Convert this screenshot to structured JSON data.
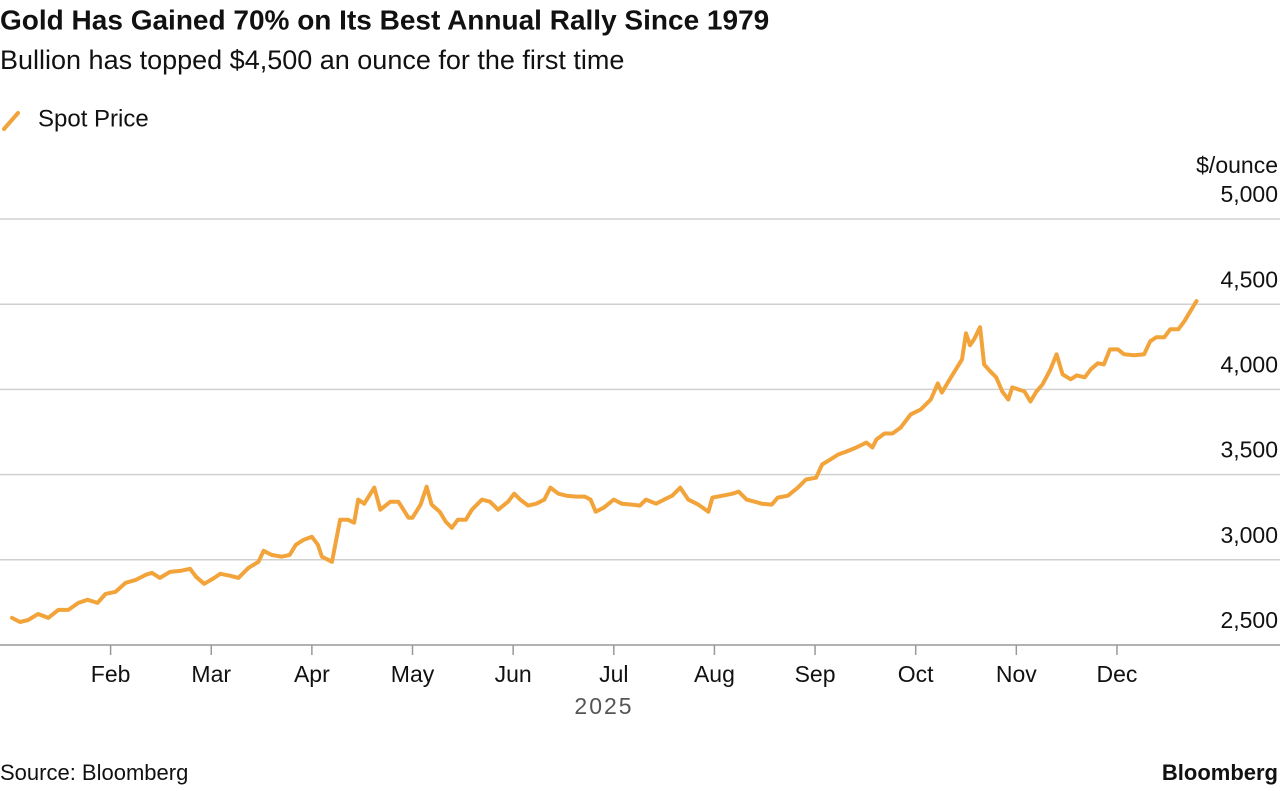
{
  "chart_data": {
    "type": "line",
    "title": "Gold Has Gained 70% on Its Best Annual Rally Since 1979",
    "subtitle": "Bullion has topped $4,500 an ounce for the first time",
    "y_unit": "$/ounce",
    "x_label": "2025",
    "source": "Source: Bloomberg",
    "brand": "Bloomberg",
    "grid": true,
    "legend": "top-left",
    "xlim": [
      -0.099,
      12.62
    ],
    "xticks": [
      {
        "value": 1,
        "label": "Feb"
      },
      {
        "value": 2,
        "label": "Mar"
      },
      {
        "value": 3,
        "label": "Apr"
      },
      {
        "value": 4,
        "label": "May"
      },
      {
        "value": 5,
        "label": "Jun"
      },
      {
        "value": 6,
        "label": "Jul"
      },
      {
        "value": 7,
        "label": "Aug"
      },
      {
        "value": 8,
        "label": "Sep"
      },
      {
        "value": 9,
        "label": "Oct"
      },
      {
        "value": 10,
        "label": "Nov"
      },
      {
        "value": 11,
        "label": "Dec"
      }
    ],
    "ylim": [
      2500,
      5000
    ],
    "yticks": [
      {
        "value": 2500,
        "label": "2,500"
      },
      {
        "value": 3000,
        "label": "3,000"
      },
      {
        "value": 3500,
        "label": "3,500"
      },
      {
        "value": 4000,
        "label": "4,000"
      },
      {
        "value": 4500,
        "label": "4,500"
      },
      {
        "value": 5000,
        "label": "5,000"
      }
    ],
    "x": [
      0.02,
      0.1,
      0.18,
      0.28,
      0.38,
      0.48,
      0.58,
      0.68,
      0.77,
      0.87,
      0.95,
      1.05,
      1.15,
      1.25,
      1.35,
      1.41,
      1.49,
      1.59,
      1.69,
      1.79,
      1.85,
      1.93,
      2.03,
      2.09,
      2.19,
      2.27,
      2.37,
      2.47,
      2.52,
      2.6,
      2.7,
      2.78,
      2.84,
      2.92,
      3.0,
      3.06,
      3.1,
      3.2,
      3.28,
      3.36,
      3.42,
      3.46,
      3.52,
      3.62,
      3.68,
      3.78,
      3.86,
      3.96,
      4.0,
      4.08,
      4.14,
      4.19,
      4.27,
      4.33,
      4.39,
      4.45,
      4.53,
      4.59,
      4.69,
      4.77,
      4.85,
      4.95,
      5.01,
      5.07,
      5.15,
      5.23,
      5.31,
      5.37,
      5.45,
      5.53,
      5.63,
      5.71,
      5.77,
      5.82,
      5.9,
      6.0,
      6.08,
      6.18,
      6.26,
      6.32,
      6.42,
      6.5,
      6.58,
      6.66,
      6.74,
      6.84,
      6.94,
      6.98,
      7.08,
      7.18,
      7.24,
      7.32,
      7.4,
      7.47,
      7.57,
      7.63,
      7.73,
      7.83,
      7.91,
      8.01,
      8.07,
      8.15,
      8.23,
      8.31,
      8.41,
      8.51,
      8.57,
      8.61,
      8.69,
      8.77,
      8.85,
      8.95,
      9.05,
      9.15,
      9.22,
      9.26,
      9.32,
      9.4,
      9.46,
      9.5,
      9.54,
      9.58,
      9.64,
      9.68,
      9.74,
      9.8,
      9.86,
      9.92,
      9.96,
      10.02,
      10.08,
      10.14,
      10.2,
      10.26,
      10.34,
      10.4,
      10.46,
      10.54,
      10.6,
      10.68,
      10.74,
      10.81,
      10.87,
      10.93,
      11.01,
      11.07,
      11.17,
      11.27,
      11.33,
      11.39,
      11.47,
      11.53,
      11.61,
      11.67,
      11.73,
      11.79
    ],
    "series": [
      {
        "name": "Spot Price",
        "color": "#f2a33a",
        "values": [
          2659,
          2635,
          2647,
          2682,
          2659,
          2706,
          2706,
          2747,
          2765,
          2747,
          2800,
          2812,
          2865,
          2882,
          2912,
          2924,
          2894,
          2929,
          2935,
          2947,
          2900,
          2859,
          2894,
          2918,
          2906,
          2894,
          2953,
          2988,
          3053,
          3029,
          3018,
          3029,
          3088,
          3118,
          3135,
          3088,
          3018,
          2988,
          3235,
          3235,
          3218,
          3353,
          3329,
          3424,
          3294,
          3341,
          3341,
          3247,
          3247,
          3324,
          3429,
          3324,
          3282,
          3224,
          3188,
          3235,
          3235,
          3294,
          3353,
          3341,
          3294,
          3341,
          3388,
          3353,
          3318,
          3329,
          3353,
          3424,
          3388,
          3376,
          3371,
          3371,
          3353,
          3282,
          3306,
          3353,
          3329,
          3324,
          3318,
          3353,
          3329,
          3353,
          3376,
          3424,
          3353,
          3324,
          3282,
          3365,
          3376,
          3388,
          3400,
          3353,
          3341,
          3329,
          3324,
          3365,
          3376,
          3424,
          3471,
          3482,
          3559,
          3588,
          3618,
          3635,
          3659,
          3688,
          3659,
          3706,
          3741,
          3741,
          3776,
          3853,
          3882,
          3941,
          4035,
          3982,
          4041,
          4118,
          4176,
          4329,
          4259,
          4294,
          4365,
          4147,
          4106,
          4071,
          3988,
          3941,
          4012,
          4000,
          3988,
          3929,
          3988,
          4029,
          4118,
          4206,
          4088,
          4059,
          4082,
          4071,
          4118,
          4153,
          4147,
          4235,
          4235,
          4206,
          4200,
          4206,
          4282,
          4306,
          4306,
          4353,
          4353,
          4400,
          4459,
          4518
        ]
      }
    ]
  }
}
